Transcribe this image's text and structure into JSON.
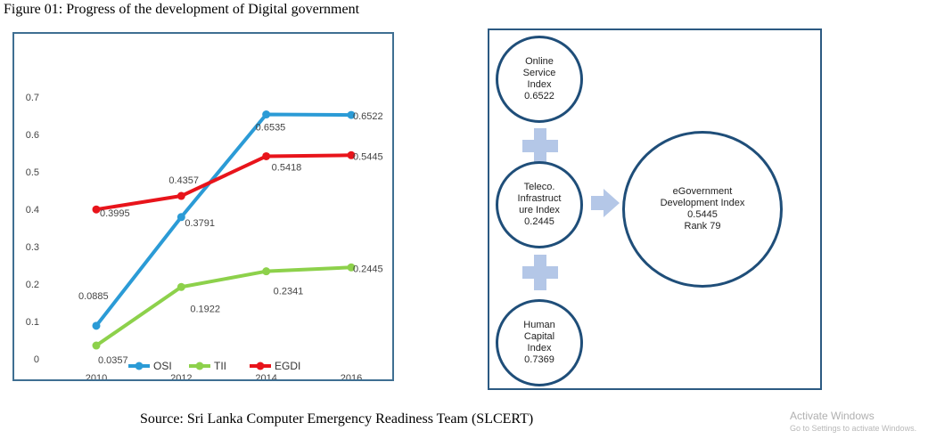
{
  "figure": {
    "title": "Figure 01: Progress of the development of Digital government",
    "source": "Source: Sri Lanka Computer Emergency Readiness Team (SLCERT)"
  },
  "chart_data": {
    "type": "line",
    "title": "",
    "xlabel": "",
    "ylabel": "",
    "x": [
      "2010",
      "2012",
      "2014",
      "2016"
    ],
    "ylim": [
      0,
      0.7
    ],
    "yticks": [
      "0",
      "0.1",
      "0.2",
      "0.3",
      "0.4",
      "0.5",
      "0.6",
      "0.7"
    ],
    "grid": false,
    "legend_position": "bottom",
    "series": [
      {
        "name": "OSI",
        "color": "#2b9bd6",
        "values": [
          0.0885,
          0.3791,
          0.6535,
          0.6522
        ],
        "labels": [
          "0.0885",
          "0.3791",
          "0.6535",
          "0.6522"
        ]
      },
      {
        "name": "TII",
        "color": "#8dd14b",
        "values": [
          0.0357,
          0.1922,
          0.2341,
          0.2445
        ],
        "labels": [
          "0.0357",
          "0.1922",
          "0.2341",
          "0.2445"
        ]
      },
      {
        "name": "EGDI",
        "color": "#e8141b",
        "values": [
          0.3995,
          0.4357,
          0.5418,
          0.5445
        ],
        "labels": [
          "0.3995",
          "0.4357",
          "0.5418",
          "0.5445"
        ]
      }
    ]
  },
  "diagram": {
    "osi": {
      "lines": [
        "Online",
        "Service",
        "Index",
        "0.6522"
      ]
    },
    "tii": {
      "lines": [
        "Teleco.",
        "Infrastruct",
        "ure Index",
        "0.2445"
      ]
    },
    "hci": {
      "lines": [
        "Human",
        "Capital",
        "Index",
        "0.7369"
      ]
    },
    "egdi": {
      "lines": [
        "eGovernment",
        "Development Index",
        "0.5445",
        "Rank 79"
      ]
    },
    "colors": {
      "circle_border": "#1f4e79",
      "connector": "#b4c7e7"
    }
  },
  "watermark": {
    "title": "Activate Windows",
    "subtitle": "Go to Settings to activate Windows."
  }
}
